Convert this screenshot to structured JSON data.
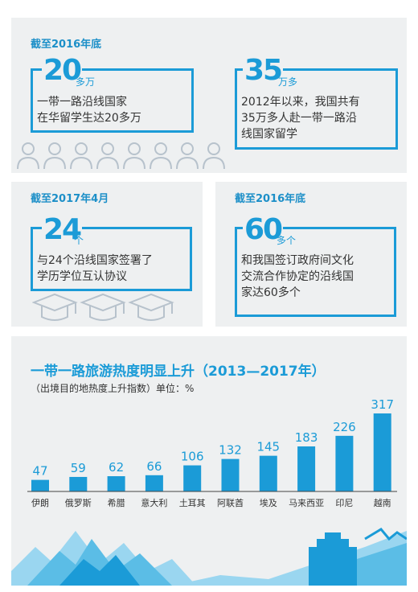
{
  "stats": [
    {
      "header": "截至2016年底",
      "number": "20",
      "unit": "多万",
      "desc_lines": [
        "一带一路沿线国家",
        "在华留学生达20多万"
      ]
    },
    {
      "header": "",
      "number": "35",
      "unit": "万多",
      "desc_lines": [
        "2012年以来，我国共有",
        "35万多人赴一带一路沿",
        "线国家留学"
      ]
    },
    {
      "header": "截至2017年4月",
      "number": "24",
      "unit": "个",
      "desc_lines": [
        "与24个沿线国家签署了",
        "学历学位互认协议"
      ]
    },
    {
      "header": "截至2016年底",
      "number": "60",
      "unit": "多个",
      "desc_lines": [
        "和我国签订政府间文化",
        "交流合作协定的沿线国",
        "家达60多个"
      ]
    }
  ],
  "icons": {
    "people": "person-outline-icon",
    "caps": "graduation-cap-icon",
    "skyline": "great-wall-mountains-icon"
  },
  "colors": {
    "accent": "#1b9bd7",
    "bar": "#1b9bd7",
    "panel": "#eef0f1"
  },
  "chart_data": {
    "type": "bar",
    "title": "一带一路旅游热度明显上升（2013—2017年）",
    "subtitle": "（出境目的地热度上升指数）单位：%",
    "categories": [
      "伊朗",
      "俄罗斯",
      "希腊",
      "意大利",
      "土耳其",
      "阿联酋",
      "埃及",
      "马来西亚",
      "印尼",
      "越南"
    ],
    "values": [
      47,
      59,
      62,
      66,
      106,
      132,
      145,
      183,
      226,
      317
    ],
    "ylim": [
      0,
      330
    ],
    "grid": false
  }
}
